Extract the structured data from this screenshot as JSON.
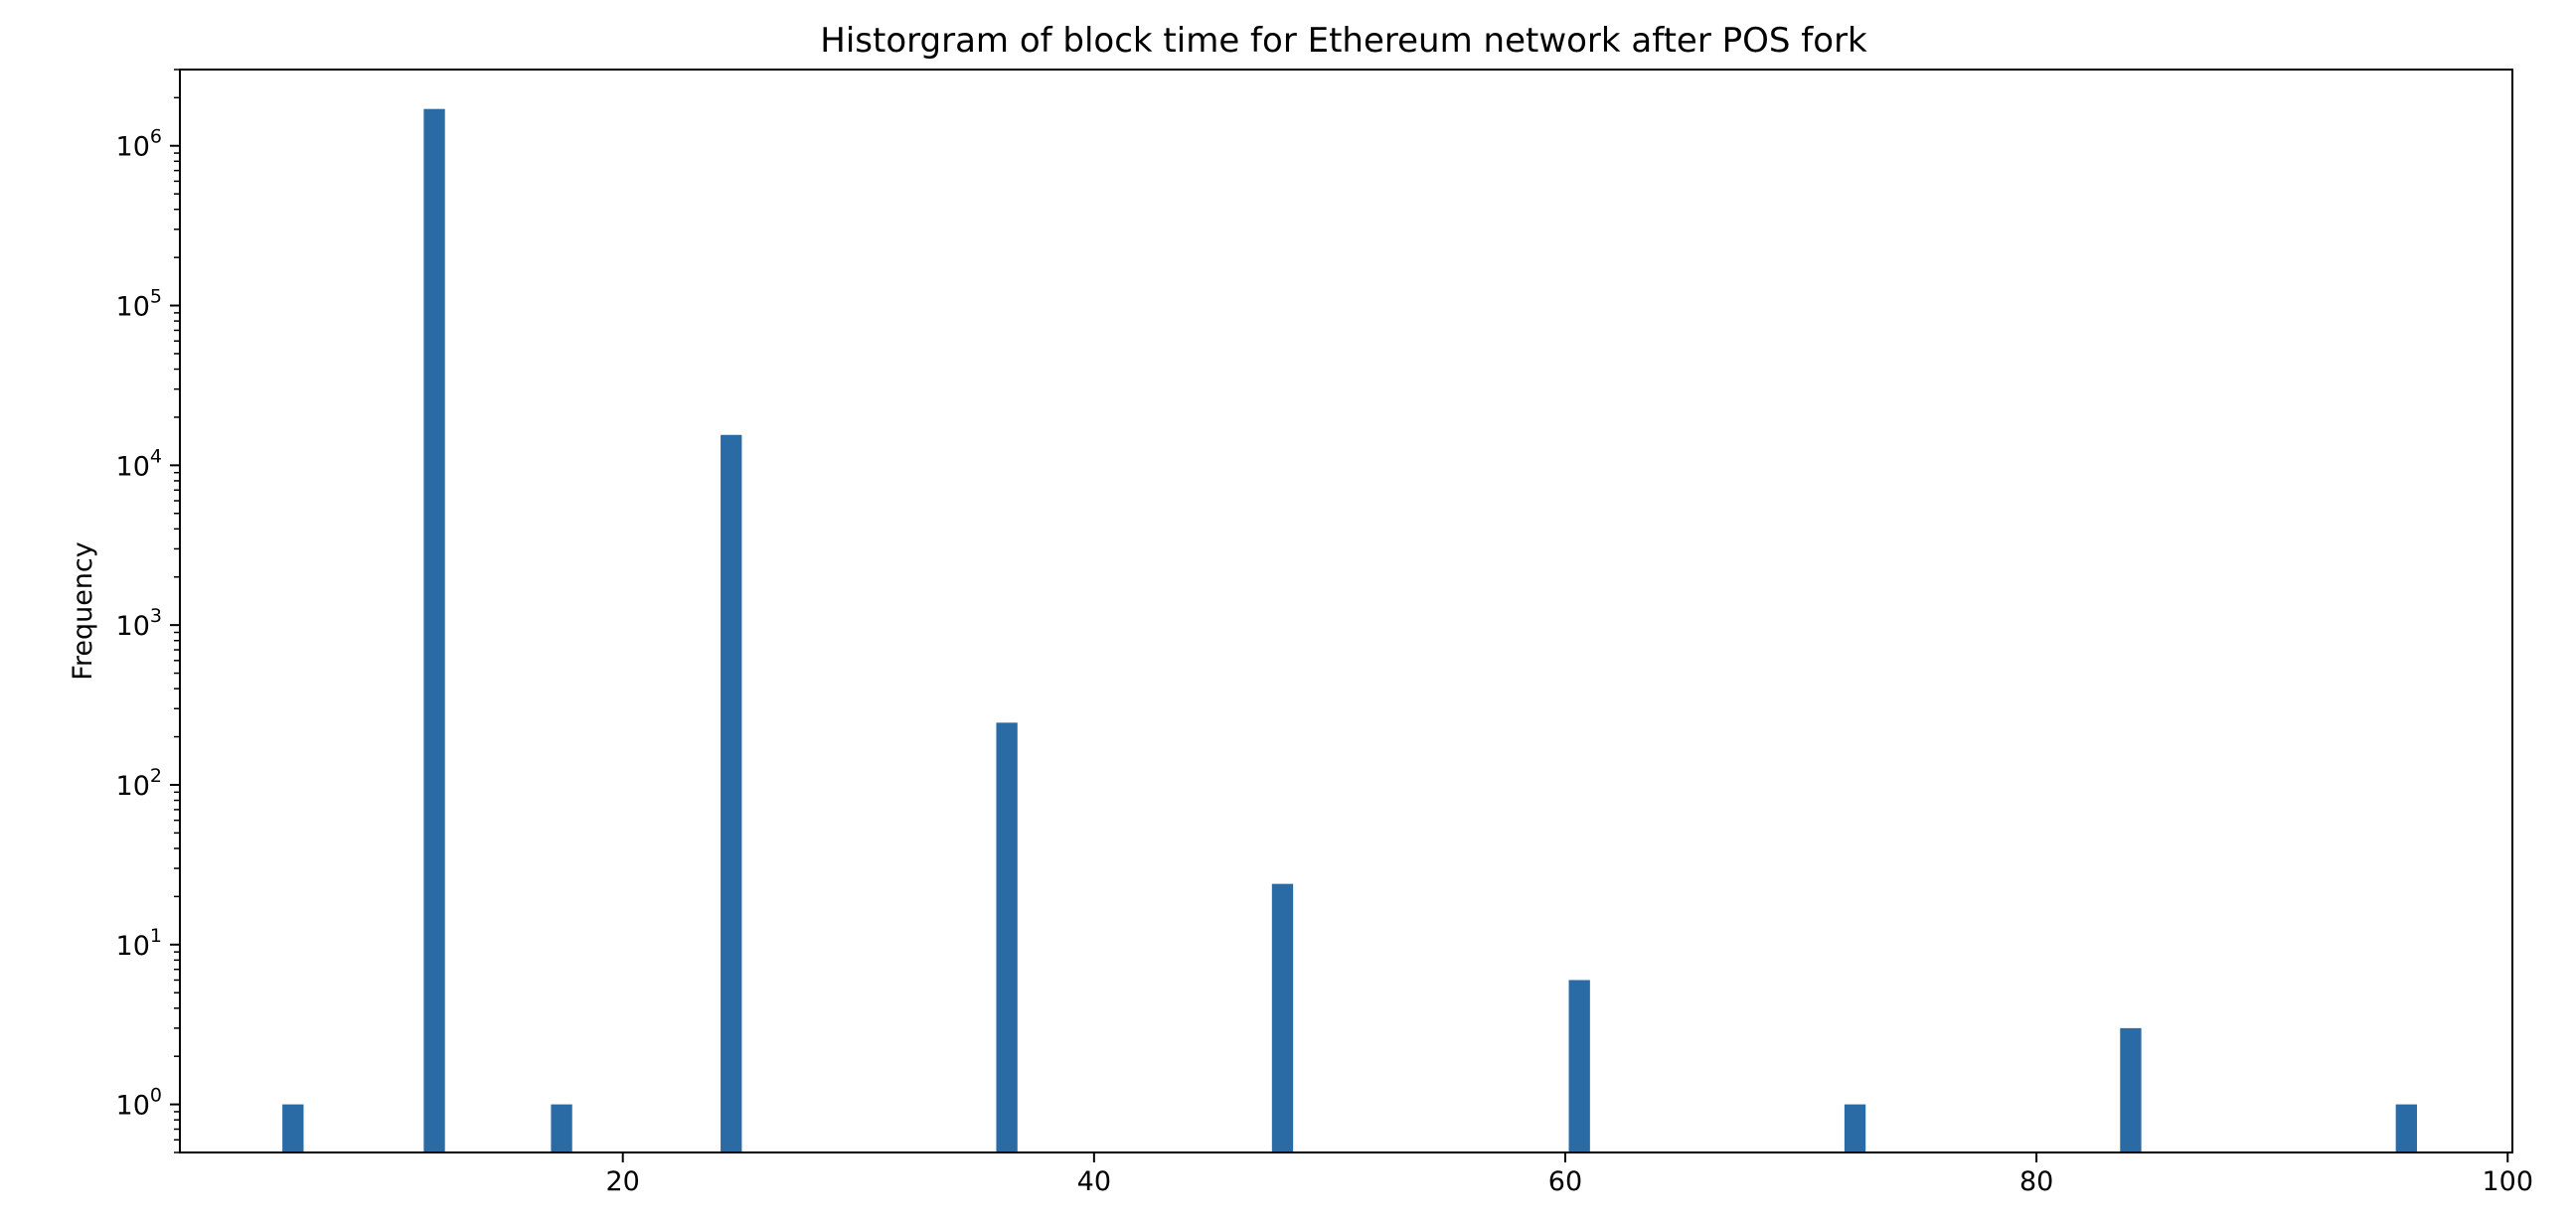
{
  "chart_data": {
    "type": "bar",
    "title": "Historgram of block time for Ethereum network after POS fork",
    "xlabel": "",
    "ylabel": "Frequency",
    "xlim": [
      1.2,
      100.2
    ],
    "ylim": [
      0.5,
      3000000
    ],
    "yscale": "log",
    "x_ticks": [
      20,
      40,
      60,
      80,
      100
    ],
    "y_ticks": [
      {
        "value": 1,
        "base": "10",
        "exp": "0"
      },
      {
        "value": 10,
        "base": "10",
        "exp": "1"
      },
      {
        "value": 100,
        "base": "10",
        "exp": "2"
      },
      {
        "value": 1000,
        "base": "10",
        "exp": "3"
      },
      {
        "value": 10000,
        "base": "10",
        "exp": "4"
      },
      {
        "value": 100000,
        "base": "10",
        "exp": "5"
      },
      {
        "value": 1000000,
        "base": "10",
        "exp": "6"
      }
    ],
    "bin_width": 0.9,
    "bars": [
      {
        "x": 6.0,
        "value": 1
      },
      {
        "x": 12.0,
        "value": 1700000
      },
      {
        "x": 17.4,
        "value": 1
      },
      {
        "x": 24.6,
        "value": 15500
      },
      {
        "x": 36.3,
        "value": 245
      },
      {
        "x": 48.0,
        "value": 24
      },
      {
        "x": 60.6,
        "value": 6
      },
      {
        "x": 72.3,
        "value": 1
      },
      {
        "x": 84.0,
        "value": 3
      },
      {
        "x": 95.7,
        "value": 1
      }
    ],
    "colors": {
      "bar": "#2a6ba6",
      "axes": "#000000"
    },
    "grid": false
  }
}
